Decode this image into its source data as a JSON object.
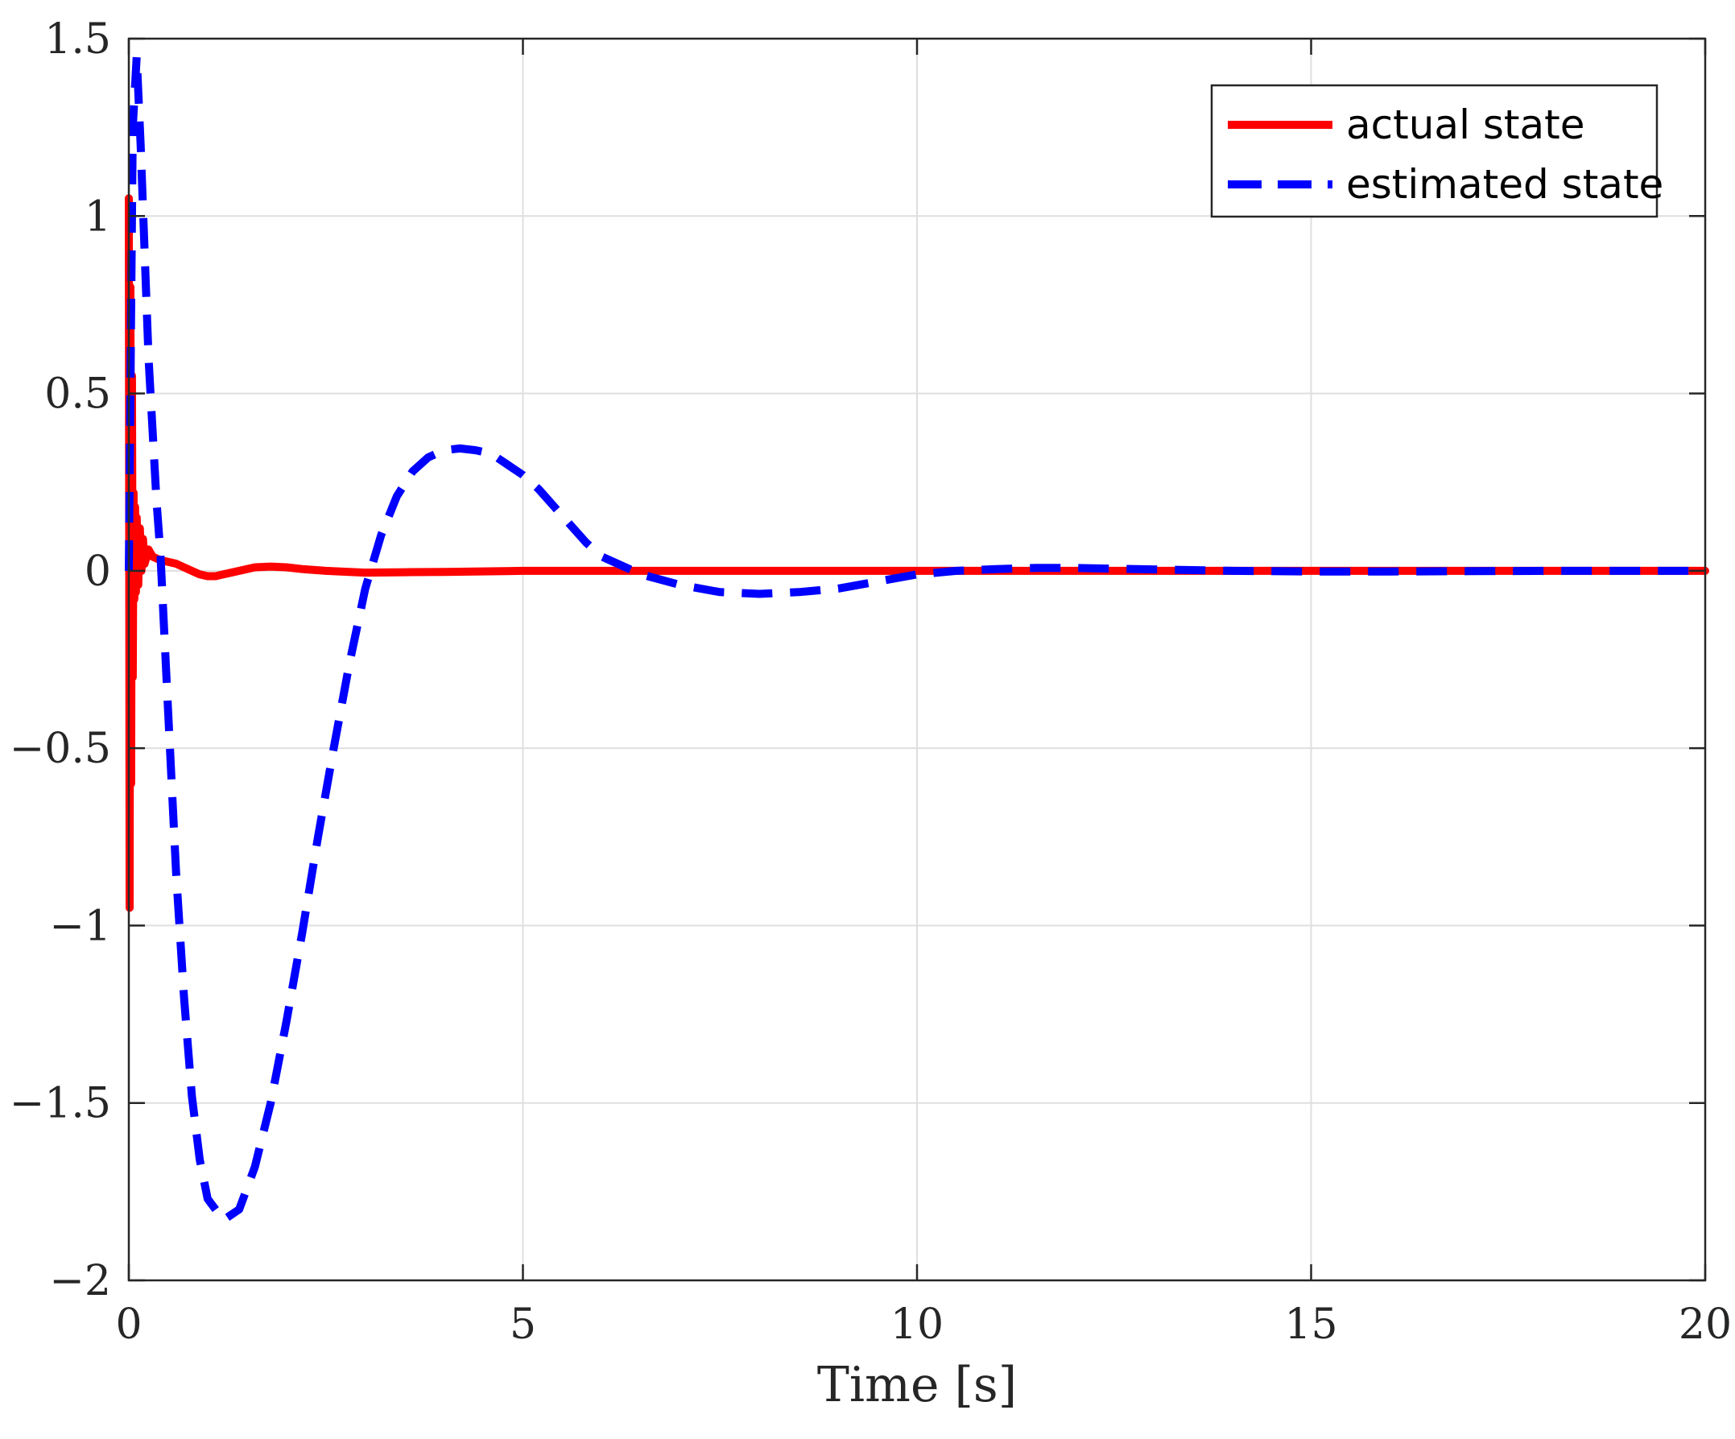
{
  "chart_data": {
    "type": "line",
    "title": "",
    "xlabel": "Time [s]",
    "ylabel": "",
    "xlim": [
      0,
      20
    ],
    "ylim": [
      -2,
      1.5
    ],
    "xticks": [
      0,
      5,
      10,
      15,
      20
    ],
    "xtick_labels": [
      "0",
      "5",
      "10",
      "15",
      "20"
    ],
    "yticks": [
      -2,
      -1.5,
      -1,
      -0.5,
      0,
      0.5,
      1,
      1.5
    ],
    "ytick_labels": [
      "−2",
      "−1.5",
      "−1",
      "−0.5",
      "0",
      "0.5",
      "1",
      "1.5"
    ],
    "grid": true,
    "legend_position": "top-right",
    "series": [
      {
        "name": "actual state",
        "color": "#ff0000",
        "style": "solid",
        "x": [
          0,
          0.01,
          0.02,
          0.03,
          0.04,
          0.05,
          0.06,
          0.07,
          0.08,
          0.09,
          0.1,
          0.12,
          0.14,
          0.16,
          0.18,
          0.2,
          0.25,
          0.3,
          0.35,
          0.4,
          0.5,
          0.6,
          0.7,
          0.8,
          0.9,
          1.0,
          1.1,
          1.2,
          1.4,
          1.6,
          1.8,
          2.0,
          2.2,
          2.5,
          2.8,
          3.0,
          3.5,
          4.0,
          5.0,
          6.0,
          7.0,
          8.0,
          10.0,
          12.0,
          14.0,
          16.0,
          18.0,
          20.0
        ],
        "values": [
          1.05,
          -0.95,
          0.8,
          -0.6,
          0.55,
          -0.3,
          0.22,
          -0.08,
          0.18,
          -0.06,
          0.15,
          -0.04,
          0.12,
          0.0,
          0.09,
          0.02,
          0.06,
          0.04,
          0.035,
          0.03,
          0.025,
          0.02,
          0.01,
          0.0,
          -0.01,
          -0.015,
          -0.015,
          -0.01,
          0.0,
          0.01,
          0.012,
          0.01,
          0.005,
          0.0,
          -0.003,
          -0.005,
          -0.004,
          -0.003,
          0.0,
          0.0,
          0.0,
          0.0,
          0.0,
          0.0,
          0.0,
          0.0,
          0.0,
          0.0
        ]
      },
      {
        "name": "estimated state",
        "color": "#0000ff",
        "style": "dashed",
        "x": [
          0,
          0.05,
          0.1,
          0.15,
          0.2,
          0.25,
          0.3,
          0.35,
          0.4,
          0.5,
          0.6,
          0.7,
          0.8,
          0.9,
          1.0,
          1.2,
          1.4,
          1.6,
          1.8,
          2.0,
          2.2,
          2.4,
          2.6,
          2.8,
          3.0,
          3.2,
          3.4,
          3.6,
          3.8,
          4.0,
          4.2,
          4.4,
          4.6,
          4.8,
          5.0,
          5.2,
          5.4,
          5.6,
          5.8,
          6.0,
          6.5,
          7.0,
          7.5,
          8.0,
          8.5,
          9.0,
          9.5,
          10.0,
          10.5,
          11.0,
          11.5,
          12.0,
          12.5,
          13.0,
          13.5,
          14.0,
          15.0,
          16.0,
          17.0,
          18.0,
          19.0,
          20.0
        ],
        "values": [
          0.0,
          1.25,
          1.45,
          1.2,
          0.9,
          0.6,
          0.4,
          0.2,
          0.05,
          -0.4,
          -0.85,
          -1.2,
          -1.48,
          -1.66,
          -1.77,
          -1.83,
          -1.8,
          -1.68,
          -1.5,
          -1.27,
          -1.02,
          -0.75,
          -0.5,
          -0.26,
          -0.05,
          0.1,
          0.21,
          0.28,
          0.32,
          0.34,
          0.345,
          0.34,
          0.33,
          0.3,
          0.27,
          0.23,
          0.18,
          0.13,
          0.08,
          0.04,
          -0.01,
          -0.04,
          -0.06,
          -0.065,
          -0.06,
          -0.05,
          -0.03,
          -0.01,
          0.0,
          0.005,
          0.008,
          0.008,
          0.006,
          0.004,
          0.002,
          0.0,
          -0.002,
          -0.002,
          -0.001,
          0.0,
          0.0,
          0.0
        ]
      }
    ]
  }
}
